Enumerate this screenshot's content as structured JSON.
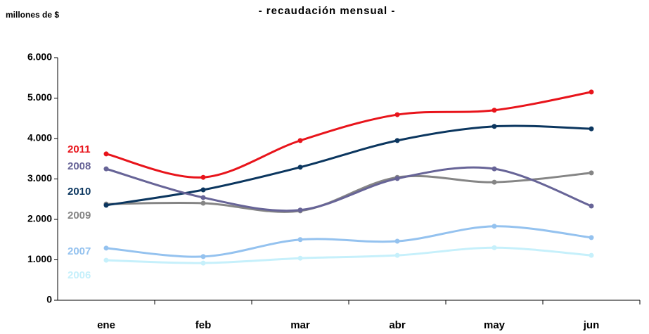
{
  "chart_data": {
    "type": "line",
    "title": "- recaudación mensual -",
    "y_label": "millones de $",
    "categories": [
      "ene",
      "feb",
      "mar",
      "abr",
      "may",
      "jun"
    ],
    "ylim": [
      0,
      6000
    ],
    "yticks": [
      0,
      {
        "value": 1000,
        "label": "1.000"
      },
      {
        "value": 2000,
        "label": "2.000"
      },
      {
        "value": 3000,
        "label": "3.000"
      },
      {
        "value": 4000,
        "label": "4.000"
      },
      {
        "value": 5000,
        "label": "5.000"
      },
      {
        "value": 6000,
        "label": "6.000"
      }
    ],
    "grid": false,
    "series": [
      {
        "name": "2011",
        "color": "#e8141b",
        "values": [
          3620,
          3040,
          3950,
          4590,
          4700,
          5150
        ]
      },
      {
        "name": "2008",
        "color": "#676497",
        "values": [
          3250,
          2540,
          2230,
          3010,
          3250,
          2330
        ]
      },
      {
        "name": "2010",
        "color": "#0b365f",
        "values": [
          2350,
          2730,
          3290,
          3950,
          4300,
          4240
        ]
      },
      {
        "name": "2009",
        "color": "#858585",
        "values": [
          2380,
          2400,
          2210,
          3040,
          2920,
          3150
        ]
      },
      {
        "name": "2007",
        "color": "#94c2ef",
        "values": [
          1290,
          1080,
          1500,
          1460,
          1830,
          1550
        ]
      },
      {
        "name": "2006",
        "color": "#c6f0fb",
        "values": [
          990,
          920,
          1040,
          1110,
          1300,
          1110
        ]
      }
    ]
  }
}
